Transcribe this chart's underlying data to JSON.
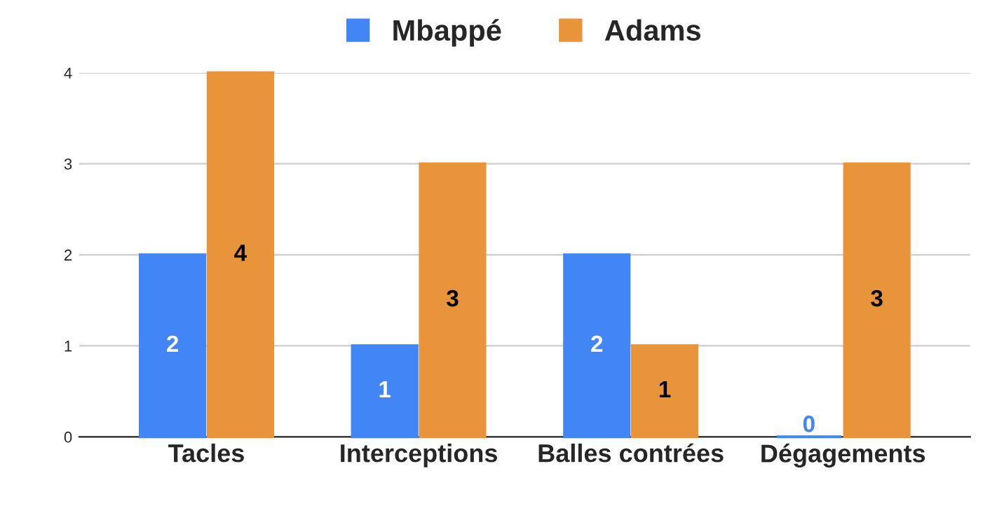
{
  "chart_data": {
    "type": "bar",
    "categories": [
      "Tacles",
      "Interceptions",
      "Balles contrées",
      "Dégagements"
    ],
    "series": [
      {
        "name": "Mbappé",
        "color": "#4285f4",
        "values": [
          2,
          1,
          2,
          0
        ]
      },
      {
        "name": "Adams",
        "color": "#e8943a",
        "values": [
          4,
          3,
          1,
          3
        ]
      }
    ],
    "ylim": [
      0,
      4
    ],
    "yticks": [
      0,
      1,
      2,
      3,
      4
    ],
    "grid": "y",
    "legend": "top",
    "data_labels": true
  }
}
